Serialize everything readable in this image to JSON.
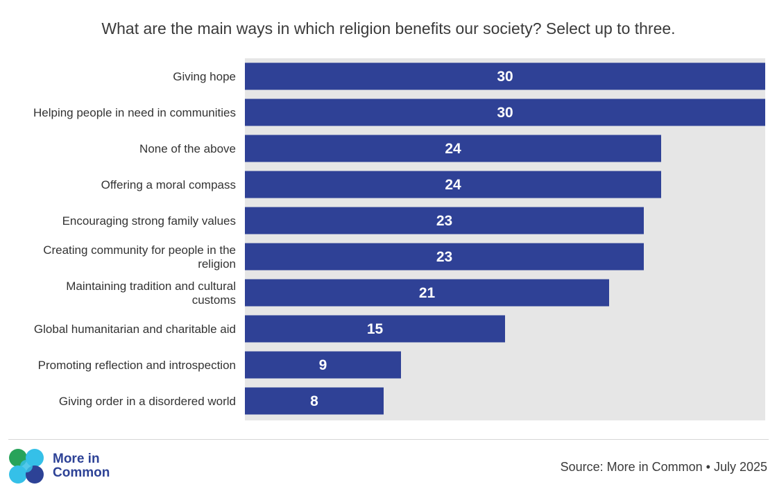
{
  "logo": {
    "line1": "More in",
    "line2": "Common"
  },
  "source": "Source: More in Common • July 2025",
  "colors": {
    "bar": "#2f4196",
    "track": "#e6e6e6",
    "logo_green": "#27a35a",
    "logo_cyan": "#35c0e8",
    "logo_blue": "#2d4296"
  },
  "chart_data": {
    "type": "bar",
    "orientation": "horizontal",
    "title": "What are the main ways in which religion benefits our society? Select up to three.",
    "categories": [
      [
        "Giving hope"
      ],
      [
        "Helping people in need in communities"
      ],
      [
        "None of the above"
      ],
      [
        "Offering a moral compass"
      ],
      [
        "Encouraging strong family values"
      ],
      [
        "Creating community for people in the",
        "religion"
      ],
      [
        "Maintaining tradition and cultural",
        "customs"
      ],
      [
        "Global humanitarian and charitable aid"
      ],
      [
        "Promoting reflection and introspection"
      ],
      [
        "Giving order in a disordered world"
      ]
    ],
    "values": [
      30,
      30,
      24,
      24,
      23,
      23,
      21,
      15,
      9,
      8
    ],
    "xlim": [
      0,
      30
    ],
    "grid": false,
    "data_labels": true
  }
}
